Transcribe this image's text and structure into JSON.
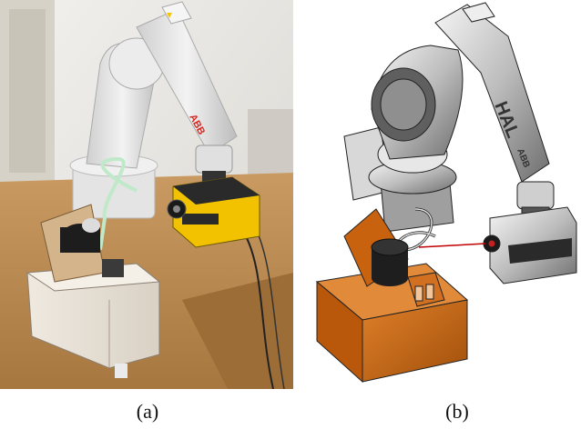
{
  "figure": {
    "panels": [
      {
        "id": "a",
        "label": "(a)",
        "brand_logo": "ABB"
      },
      {
        "id": "b",
        "label": "(b)",
        "brand_logo": "ABB",
        "sensor_label": "HAL"
      }
    ]
  },
  "colors": {
    "robot_white": "#e8e8e8",
    "camera_yellow": "#f2c200",
    "abb_red": "#d7261e",
    "cad_orange": "#c8620f",
    "wood": "#b88a55",
    "wall": "#e6e4df"
  }
}
